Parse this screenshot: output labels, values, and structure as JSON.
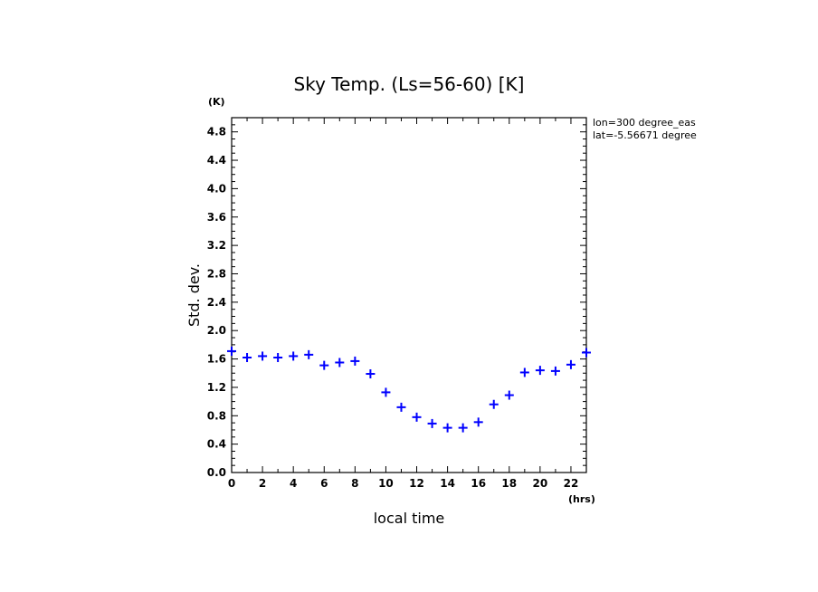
{
  "chart_data": {
    "type": "scatter",
    "title": "Sky Temp. (Ls=56-60) [K]",
    "xlabel": "local time",
    "ylabel": "Std. dev.",
    "x_unit": "(hrs)",
    "y_unit": "(K)",
    "xlim": [
      0,
      23
    ],
    "ylim": [
      0,
      5.0
    ],
    "x_ticks": [
      0,
      2,
      4,
      6,
      8,
      10,
      12,
      14,
      16,
      18,
      20,
      22
    ],
    "y_ticks": [
      0.0,
      0.4,
      0.8,
      1.2,
      1.6,
      2.0,
      2.4,
      2.8,
      3.2,
      3.6,
      4.0,
      4.4,
      4.8
    ],
    "y_tick_labels": [
      "0.0",
      "0.4",
      "0.8",
      "1.2",
      "1.6",
      "2.0",
      "2.4",
      "2.8",
      "3.2",
      "3.6",
      "4.0",
      "4.4",
      "4.8"
    ],
    "annotations": [
      "lon=300 degree_eas",
      "lat=-5.56671 degree"
    ],
    "marker": "+",
    "series": [
      {
        "color": "#0000ff",
        "x": [
          0,
          1,
          2,
          3,
          4,
          5,
          6,
          7,
          8,
          9,
          10,
          11,
          12,
          13,
          14,
          15,
          16,
          17,
          18,
          19,
          20,
          21,
          22,
          23
        ],
        "y": [
          1.71,
          1.62,
          1.64,
          1.62,
          1.64,
          1.66,
          1.51,
          1.55,
          1.57,
          1.39,
          1.13,
          0.92,
          0.78,
          0.69,
          0.63,
          0.63,
          0.71,
          0.96,
          1.09,
          1.41,
          1.44,
          1.43,
          1.52,
          1.69
        ]
      }
    ],
    "grid": false,
    "legend": "none"
  }
}
